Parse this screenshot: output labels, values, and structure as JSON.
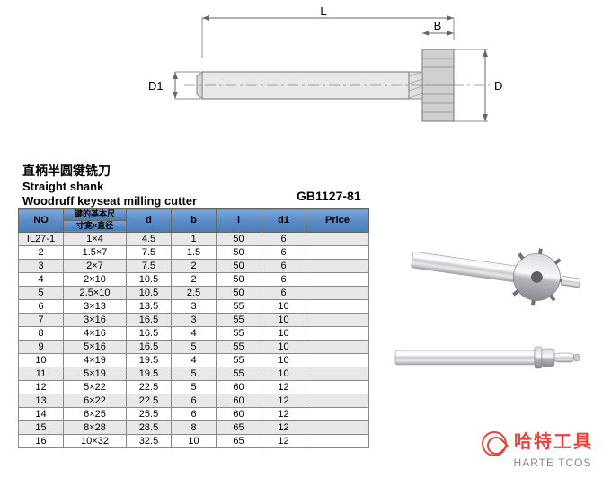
{
  "diagram": {
    "labels": {
      "L": "L",
      "B": "B",
      "D": "D",
      "D1": "D1"
    },
    "stroke": "#888888",
    "fill_light": "#d8d8d8",
    "fill_dark": "#b0b0b0",
    "dim_color": "#666666"
  },
  "title": {
    "cn": "直柄半圆键铣刀",
    "en_line1": "Straight shank",
    "en_line2": "Woodruff keyseat milling cutter",
    "standard": "GB1127-81"
  },
  "table": {
    "headers": {
      "no": "NO",
      "dim_cn1": "键的基本尺",
      "dim_cn2": "寸宽×直径",
      "d": "d",
      "b": "b",
      "l": "l",
      "d1": "d1",
      "price": "Price"
    },
    "rows": [
      {
        "no": "IL27-1",
        "dim": "1×4",
        "d": "4.5",
        "b": "1",
        "l": "50",
        "d1": "6",
        "price": ""
      },
      {
        "no": "2",
        "dim": "1.5×7",
        "d": "7.5",
        "b": "1.5",
        "l": "50",
        "d1": "6",
        "price": ""
      },
      {
        "no": "3",
        "dim": "2×7",
        "d": "7.5",
        "b": "2",
        "l": "50",
        "d1": "6",
        "price": ""
      },
      {
        "no": "4",
        "dim": "2×10",
        "d": "10.5",
        "b": "2",
        "l": "50",
        "d1": "6",
        "price": ""
      },
      {
        "no": "5",
        "dim": "2.5×10",
        "d": "10.5",
        "b": "2.5",
        "l": "50",
        "d1": "6",
        "price": ""
      },
      {
        "no": "6",
        "dim": "3×13",
        "d": "13.5",
        "b": "3",
        "l": "55",
        "d1": "10",
        "price": ""
      },
      {
        "no": "7",
        "dim": "3×16",
        "d": "16.5",
        "b": "3",
        "l": "55",
        "d1": "10",
        "price": ""
      },
      {
        "no": "8",
        "dim": "4×16",
        "d": "16.5",
        "b": "4",
        "l": "55",
        "d1": "10",
        "price": ""
      },
      {
        "no": "9",
        "dim": "5×16",
        "d": "16.5",
        "b": "5",
        "l": "55",
        "d1": "10",
        "price": ""
      },
      {
        "no": "10",
        "dim": "4×19",
        "d": "19.5",
        "b": "4",
        "l": "55",
        "d1": "10",
        "price": ""
      },
      {
        "no": "11",
        "dim": "5×19",
        "d": "19.5",
        "b": "5",
        "l": "55",
        "d1": "10",
        "price": ""
      },
      {
        "no": "12",
        "dim": "5×22",
        "d": "22.5",
        "b": "5",
        "l": "60",
        "d1": "12",
        "price": ""
      },
      {
        "no": "13",
        "dim": "6×22",
        "d": "22.5",
        "b": "6",
        "l": "60",
        "d1": "12",
        "price": ""
      },
      {
        "no": "14",
        "dim": "6×25",
        "d": "25.5",
        "b": "6",
        "l": "60",
        "d1": "12",
        "price": ""
      },
      {
        "no": "15",
        "dim": "8×28",
        "d": "28.5",
        "b": "8",
        "l": "65",
        "d1": "12",
        "price": ""
      },
      {
        "no": "16",
        "dim": "10×32",
        "d": "32.5",
        "b": "10",
        "l": "65",
        "d1": "12",
        "price": ""
      }
    ],
    "alt_bg": "#e8e8e8",
    "header_gradient_top": "#7ba8d8",
    "header_gradient_bottom": "#4a7cb8"
  },
  "logo": {
    "cn": "哈特工具",
    "en": "HARTE TCOS",
    "color": "#e8453c"
  },
  "photo": {
    "metal_light": "#e8e8ec",
    "metal_mid": "#c8c8d0",
    "metal_dark": "#909098"
  }
}
